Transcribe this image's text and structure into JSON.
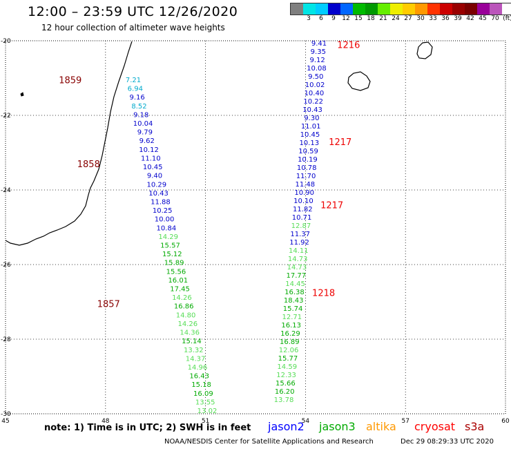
{
  "header": {
    "title": "12:00 – 23:59 UTC 12/26/2020",
    "subtitle": "12 hour collection of altimeter wave heights"
  },
  "colorbar": {
    "colors": [
      "#7f7f7f",
      "#00e5e5",
      "#00ccff",
      "#0000cc",
      "#0066ff",
      "#00bb00",
      "#009900",
      "#66ee00",
      "#eeee00",
      "#ffcc00",
      "#ff9900",
      "#ff3300",
      "#cc0000",
      "#990000",
      "#7a0000",
      "#990099",
      "#bb55bb",
      "#ffffff",
      "#000000"
    ],
    "labels": [
      "3",
      "6",
      "9",
      "12",
      "15",
      "18",
      "21",
      "24",
      "27",
      "30",
      "33",
      "36",
      "39",
      "42",
      "45",
      "70",
      "(ft)"
    ]
  },
  "map": {
    "lon_range": [
      45,
      60
    ],
    "lat_range": [
      -30,
      -20
    ],
    "x_ticks": [
      "45",
      "48",
      "51",
      "54",
      "57",
      "60"
    ],
    "y_ticks": [
      "-20",
      "-22",
      "-24",
      "-26",
      "-28",
      "-30"
    ],
    "gridlines": true,
    "land_color": "#000000"
  },
  "passes": [
    {
      "label": "1859",
      "color": "#880000",
      "lon": 46.6,
      "lat": -21.05
    },
    {
      "label": "1858",
      "color": "#880000",
      "lon": 47.15,
      "lat": -23.3
    },
    {
      "label": "1857",
      "color": "#880000",
      "lon": 47.75,
      "lat": -27.05
    },
    {
      "label": "1216",
      "color": "#ee0000",
      "lon": 54.95,
      "lat": -20.1
    },
    {
      "label": "1217",
      "color": "#ee0000",
      "lon": 54.7,
      "lat": -22.7
    },
    {
      "label": "1217",
      "color": "#ee0000",
      "lon": 54.45,
      "lat": -24.4
    },
    {
      "label": "1218",
      "color": "#ee0000",
      "lon": 54.2,
      "lat": -26.75
    }
  ],
  "track_west": [
    {
      "v": "7.21",
      "c": "#00aacc"
    },
    {
      "v": "6.94",
      "c": "#00aacc"
    },
    {
      "v": "9.16",
      "c": "#0000cc"
    },
    {
      "v": "8.52",
      "c": "#00aacc"
    },
    {
      "v": "9.18",
      "c": "#0000cc"
    },
    {
      "v": "10.04",
      "c": "#0000cc"
    },
    {
      "v": "9.79",
      "c": "#0000cc"
    },
    {
      "v": "9.62",
      "c": "#0000cc"
    },
    {
      "v": "10.12",
      "c": "#0000cc"
    },
    {
      "v": "11.10",
      "c": "#0000cc"
    },
    {
      "v": "10.45",
      "c": "#0000cc"
    },
    {
      "v": "9.40",
      "c": "#0000cc"
    },
    {
      "v": "10.29",
      "c": "#0000cc"
    },
    {
      "v": "10.43",
      "c": "#0000cc"
    },
    {
      "v": "11.88",
      "c": "#0000cc"
    },
    {
      "v": "10.25",
      "c": "#0000cc"
    },
    {
      "v": "10.00",
      "c": "#0000cc"
    },
    {
      "v": "10.84",
      "c": "#0000cc"
    },
    {
      "v": "14.29",
      "c": "#55dd55"
    },
    {
      "v": "15.57",
      "c": "#00aa00"
    },
    {
      "v": "15.12",
      "c": "#00aa00"
    },
    {
      "v": "15.89",
      "c": "#00aa00"
    },
    {
      "v": "15.56",
      "c": "#00aa00"
    },
    {
      "v": "16.01",
      "c": "#00aa00"
    },
    {
      "v": "17.45",
      "c": "#00aa00"
    },
    {
      "v": "14.26",
      "c": "#55dd55"
    },
    {
      "v": "16.86",
      "c": "#00aa00"
    },
    {
      "v": "14.80",
      "c": "#55dd55"
    },
    {
      "v": "14.26",
      "c": "#55dd55"
    },
    {
      "v": "14.36",
      "c": "#55dd55"
    },
    {
      "v": "15.14",
      "c": "#00aa00"
    },
    {
      "v": "13.32",
      "c": "#55dd55"
    },
    {
      "v": "14.37",
      "c": "#55dd55"
    },
    {
      "v": "14.96",
      "c": "#55dd55"
    },
    {
      "v": "16.43",
      "c": "#00aa00"
    },
    {
      "v": "15.18",
      "c": "#00aa00"
    },
    {
      "v": "16.09",
      "c": "#00aa00"
    },
    {
      "v": "13.55",
      "c": "#55dd55"
    },
    {
      "v": "13.02",
      "c": "#55dd55"
    }
  ],
  "track_east": [
    {
      "v": "9.41",
      "c": "#0000cc"
    },
    {
      "v": "9.35",
      "c": "#0000cc"
    },
    {
      "v": "9.12",
      "c": "#0000cc"
    },
    {
      "v": "10.08",
      "c": "#0000cc"
    },
    {
      "v": "9.50",
      "c": "#0000cc"
    },
    {
      "v": "10.02",
      "c": "#0000cc"
    },
    {
      "v": "10.40",
      "c": "#0000cc"
    },
    {
      "v": "10.22",
      "c": "#0000cc"
    },
    {
      "v": "10.43",
      "c": "#0000cc"
    },
    {
      "v": "9.30",
      "c": "#0000cc"
    },
    {
      "v": "11.01",
      "c": "#0000cc"
    },
    {
      "v": "10.45",
      "c": "#0000cc"
    },
    {
      "v": "10.13",
      "c": "#0000cc"
    },
    {
      "v": "10.59",
      "c": "#0000cc"
    },
    {
      "v": "10.19",
      "c": "#0000cc"
    },
    {
      "v": "10.78",
      "c": "#0000cc"
    },
    {
      "v": "11.70",
      "c": "#0000cc"
    },
    {
      "v": "11.48",
      "c": "#0000cc"
    },
    {
      "v": "10.90",
      "c": "#0000cc"
    },
    {
      "v": "10.10",
      "c": "#0000cc"
    },
    {
      "v": "11.82",
      "c": "#0000cc"
    },
    {
      "v": "10.71",
      "c": "#0000cc"
    },
    {
      "v": "12.87",
      "c": "#55dd55"
    },
    {
      "v": "11.37",
      "c": "#0000cc"
    },
    {
      "v": "11.92",
      "c": "#0000cc"
    },
    {
      "v": "14.11",
      "c": "#55dd55"
    },
    {
      "v": "14.73",
      "c": "#55dd55"
    },
    {
      "v": "14.73",
      "c": "#55dd55"
    },
    {
      "v": "17.77",
      "c": "#00aa00"
    },
    {
      "v": "14.45",
      "c": "#55dd55"
    },
    {
      "v": "16.38",
      "c": "#00aa00"
    },
    {
      "v": "18.43",
      "c": "#00aa00"
    },
    {
      "v": "15.74",
      "c": "#00aa00"
    },
    {
      "v": "12.71",
      "c": "#55dd55"
    },
    {
      "v": "16.13",
      "c": "#00aa00"
    },
    {
      "v": "16.29",
      "c": "#00aa00"
    },
    {
      "v": "16.89",
      "c": "#00aa00"
    },
    {
      "v": "12.06",
      "c": "#55dd55"
    },
    {
      "v": "15.77",
      "c": "#00aa00"
    },
    {
      "v": "14.59",
      "c": "#55dd55"
    },
    {
      "v": "12.33",
      "c": "#55dd55"
    },
    {
      "v": "15.66",
      "c": "#00aa00"
    },
    {
      "v": "16.20",
      "c": "#00aa00"
    },
    {
      "v": "13.78",
      "c": "#55dd55"
    }
  ],
  "footer": {
    "note": "note:  1) Time is in UTC;  2) SWH is in feet",
    "satellites": [
      {
        "name": "jason2",
        "color": "#0000ff"
      },
      {
        "name": "jason3",
        "color": "#00aa00"
      },
      {
        "name": "altika",
        "color": "#ff9900"
      },
      {
        "name": "cryosat",
        "color": "#ff0000"
      },
      {
        "name": "s3a",
        "color": "#aa0000"
      }
    ],
    "credit": "NOAA/NESDIS Center for Satellite Applications and Research",
    "timestamp": "Dec 29 08:29:33 UTC 2020"
  }
}
